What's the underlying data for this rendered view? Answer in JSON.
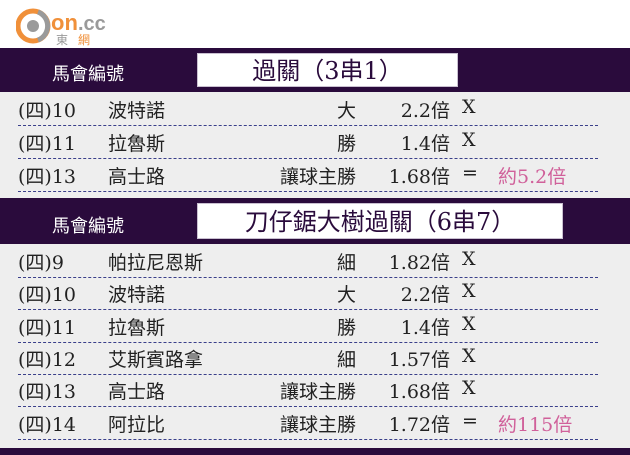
{
  "logo": {
    "text": "on.cc",
    "sub": "東網",
    "colors": {
      "orange": "#f0903a",
      "gray": "#8a8a8a"
    }
  },
  "sections": [
    {
      "header_label": "馬會編號",
      "title": "過關（3串1）",
      "rows": [
        {
          "race": "(四)10",
          "horse": "波特諾",
          "bet": "大",
          "odds": "2.2倍",
          "mark": "X",
          "result": ""
        },
        {
          "race": "(四)11",
          "horse": "拉魯斯",
          "bet": "勝",
          "odds": "1.4倍",
          "mark": "X",
          "result": ""
        },
        {
          "race": "(四)13",
          "horse": "高士路",
          "bet": "讓球主勝",
          "odds": "1.68倍",
          "mark": "=",
          "result": "約5.2倍"
        }
      ]
    },
    {
      "header_label": "馬會編號",
      "title": "刀仔鋸大樹過關（6串7）",
      "rows": [
        {
          "race": "(四)9",
          "horse": "帕拉尼恩斯",
          "bet": "細",
          "odds": "1.82倍",
          "mark": "X",
          "result": ""
        },
        {
          "race": "(四)10",
          "horse": "波特諾",
          "bet": "大",
          "odds": "2.2倍",
          "mark": "X",
          "result": ""
        },
        {
          "race": "(四)11",
          "horse": "拉魯斯",
          "bet": "勝",
          "odds": "1.4倍",
          "mark": "X",
          "result": ""
        },
        {
          "race": "(四)12",
          "horse": "艾斯賓路拿",
          "bet": "細",
          "odds": "1.57倍",
          "mark": "X",
          "result": ""
        },
        {
          "race": "(四)13",
          "horse": "高士路",
          "bet": "讓球主勝",
          "odds": "1.68倍",
          "mark": "X",
          "result": ""
        },
        {
          "race": "(四)14",
          "horse": "阿拉比",
          "bet": "讓球主勝",
          "odds": "1.72倍",
          "mark": "=",
          "result": "約115倍"
        }
      ]
    }
  ]
}
